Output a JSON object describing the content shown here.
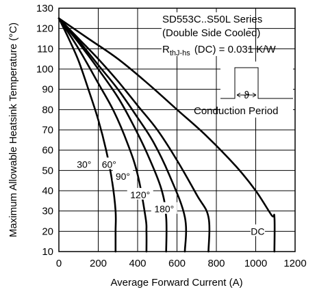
{
  "chart_data": {
    "type": "line",
    "title": "",
    "xlabel": "Average Forward Current (A)",
    "ylabel": "Maximum Allowable Heatsink Temperature (°C)",
    "xlim": [
      0,
      1200
    ],
    "ylim": [
      10,
      130
    ],
    "x_ticks": [
      0,
      200,
      400,
      600,
      800,
      1000,
      1200
    ],
    "y_ticks": [
      10,
      20,
      30,
      40,
      50,
      60,
      70,
      80,
      90,
      100,
      110,
      120,
      130
    ],
    "x_tick_labels": [
      "0",
      "200",
      "400",
      "600",
      "800",
      "1000",
      "1200"
    ],
    "y_tick_labels": [
      "10",
      "20",
      "30",
      "40",
      "50",
      "60",
      "70",
      "80",
      "90",
      "100",
      "110",
      "120",
      "130"
    ],
    "grid": true,
    "annotations": {
      "series_name": "SD553C..S50L Series",
      "cooling": "(Double Side Cooled)",
      "rth_main": "R",
      "rth_sub": "thJ-hs",
      "rth_rest": "(DC) = 0.031 K/W",
      "theta": "ϑ",
      "conduction_period": "Conduction Period"
    },
    "series": [
      {
        "name": "30°",
        "label_at": [
          128,
          53
        ],
        "x": [
          0,
          50,
          100,
          150,
          200,
          240,
          270,
          288,
          288,
          288
        ],
        "y": [
          125,
          115,
          104,
          90,
          75,
          60,
          45,
          30,
          20,
          10
        ]
      },
      {
        "name": "60°",
        "label_at": [
          255,
          53
        ],
        "x": [
          0,
          100,
          200,
          280,
          350,
          400,
          440,
          445,
          445
        ],
        "y": [
          125,
          110,
          93,
          79,
          63,
          48,
          27,
          20,
          10
        ]
      },
      {
        "name": "90°",
        "label_at": [
          325,
          47
        ],
        "x": [
          0,
          100,
          200,
          300,
          380,
          450,
          520,
          545,
          545
        ],
        "y": [
          125,
          113,
          100,
          86,
          72,
          58,
          41,
          27,
          10
        ]
      },
      {
        "name": "120°",
        "label_at": [
          413,
          38
        ],
        "x": [
          0,
          100,
          200,
          300,
          400,
          480,
          560,
          640,
          640
        ],
        "y": [
          125,
          114,
          102,
          90,
          76,
          64,
          48,
          27,
          10
        ]
      },
      {
        "name": "180°",
        "label_at": [
          535,
          31
        ],
        "x": [
          0,
          100,
          200,
          300,
          400,
          500,
          600,
          700,
          760,
          760
        ],
        "y": [
          125,
          115,
          105,
          94,
          82,
          70,
          55,
          38,
          27,
          10
        ]
      },
      {
        "name": "DC",
        "label_at": [
          1010,
          20
        ],
        "x": [
          0,
          150,
          300,
          450,
          600,
          750,
          900,
          1000,
          1080,
          1095,
          1095
        ],
        "y": [
          125,
          115,
          105,
          93,
          80,
          67,
          52,
          40,
          28,
          27,
          10
        ]
      }
    ]
  }
}
